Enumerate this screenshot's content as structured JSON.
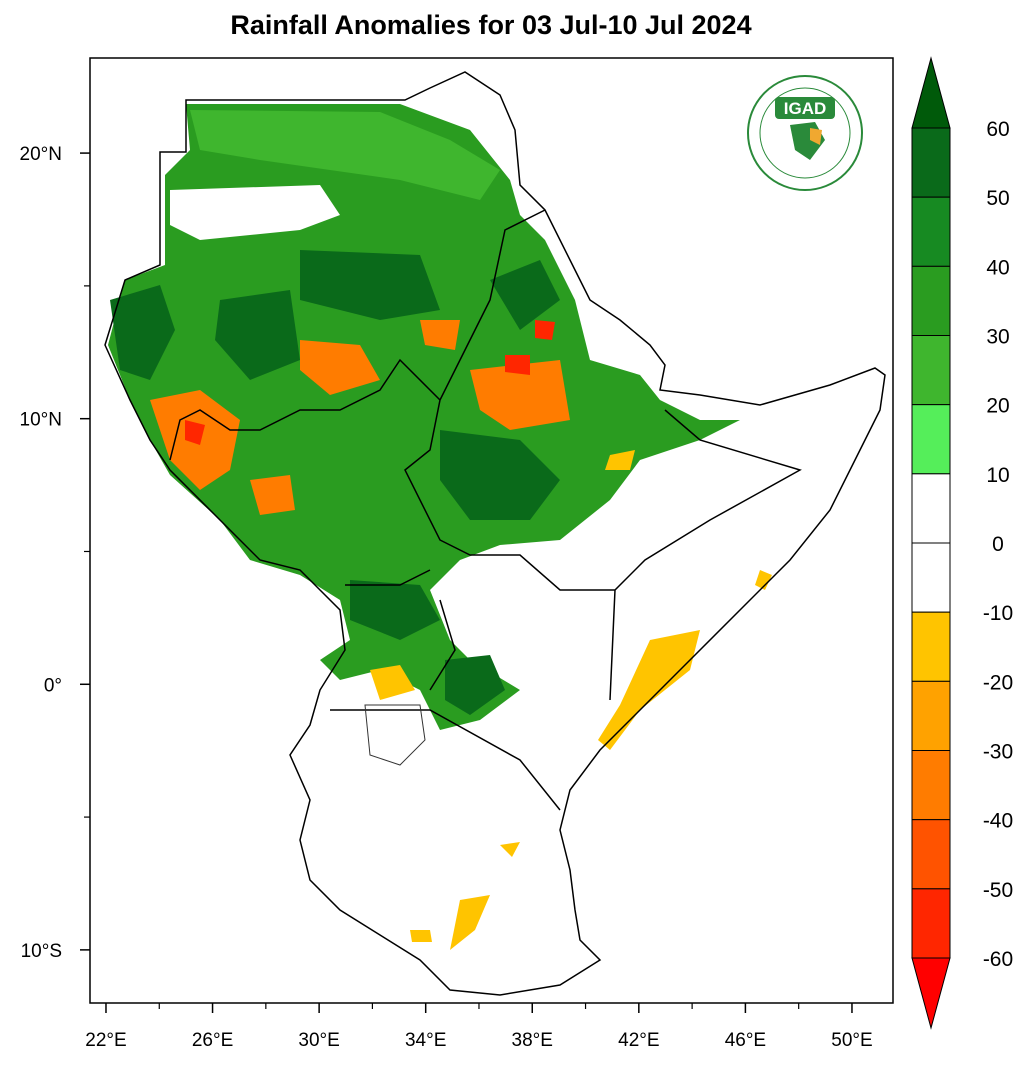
{
  "title": "Rainfall Anomalies for 03 Jul-10 Jul 2024",
  "map": {
    "xlim": [
      21.4,
      51.54
    ],
    "ylim": [
      -12.0,
      23.58
    ],
    "xticks": [
      {
        "value": 22,
        "label": "22°E"
      },
      {
        "value": 26,
        "label": "26°E"
      },
      {
        "value": 30,
        "label": "30°E"
      },
      {
        "value": 34,
        "label": "34°E"
      },
      {
        "value": 38,
        "label": "38°E"
      },
      {
        "value": 42,
        "label": "42°E"
      },
      {
        "value": 46,
        "label": "46°E"
      },
      {
        "value": 50,
        "label": "50°E"
      }
    ],
    "xminor": [
      24,
      28,
      32,
      36,
      40,
      44,
      48
    ],
    "yticks": [
      {
        "value": 20,
        "label": "20°N"
      },
      {
        "value": 10,
        "label": "10°N"
      },
      {
        "value": 0,
        "label": "0°"
      },
      {
        "value": -10,
        "label": "10°S"
      }
    ],
    "yminor": [
      15,
      5,
      -5
    ]
  },
  "colorbar": {
    "ticks": [
      60,
      50,
      40,
      30,
      20,
      10,
      0,
      -10,
      -20,
      -30,
      -40,
      -50,
      -60
    ],
    "colors": [
      "#005a0a",
      "#0a6a1a",
      "#178a22",
      "#2a9c20",
      "#3fb62e",
      "#55ee5a",
      "#ffffff",
      "#ffffff",
      "#ffc400",
      "#ffa200",
      "#ff7c00",
      "#ff5300",
      "#ff2600",
      "#ff0000"
    ]
  },
  "logo": {
    "text": "IGAD"
  }
}
